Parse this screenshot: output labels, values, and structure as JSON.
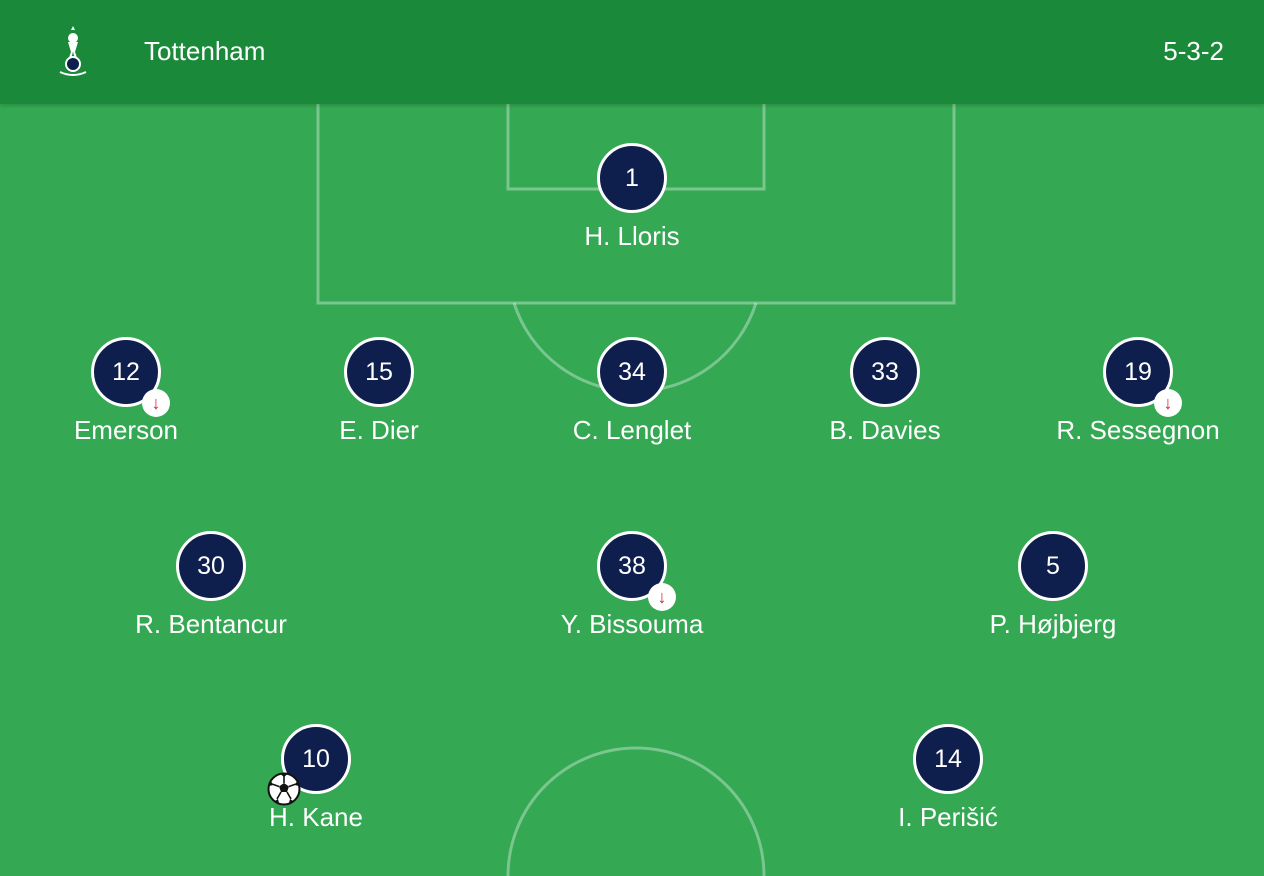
{
  "header": {
    "team_name": "Tottenham",
    "formation": "5-3-2",
    "crest_icon": "spurs-crest-icon"
  },
  "colors": {
    "pitch": "#34a853",
    "header": "#1a8a3a",
    "badge": "#0f1f4d",
    "sub_arrow": "#d6213a"
  },
  "players": {
    "gk": {
      "number": "1",
      "name": "H. Lloris"
    },
    "def1": {
      "number": "12",
      "name": "Emerson",
      "substituted": true
    },
    "def2": {
      "number": "15",
      "name": "E. Dier"
    },
    "def3": {
      "number": "34",
      "name": "C. Lenglet"
    },
    "def4": {
      "number": "33",
      "name": "B. Davies"
    },
    "def5": {
      "number": "19",
      "name": "R. Sessegnon",
      "substituted": true
    },
    "mid1": {
      "number": "30",
      "name": "R. Bentancur"
    },
    "mid2": {
      "number": "38",
      "name": "Y. Bissouma",
      "substituted": true
    },
    "mid3": {
      "number": "5",
      "name": "P. Højbjerg"
    },
    "fwd1": {
      "number": "10",
      "name": "H. Kane",
      "goal": true
    },
    "fwd2": {
      "number": "14",
      "name": "I. Perišić"
    }
  },
  "icons": {
    "substitution": "↓",
    "goal": "soccer-ball-icon"
  }
}
